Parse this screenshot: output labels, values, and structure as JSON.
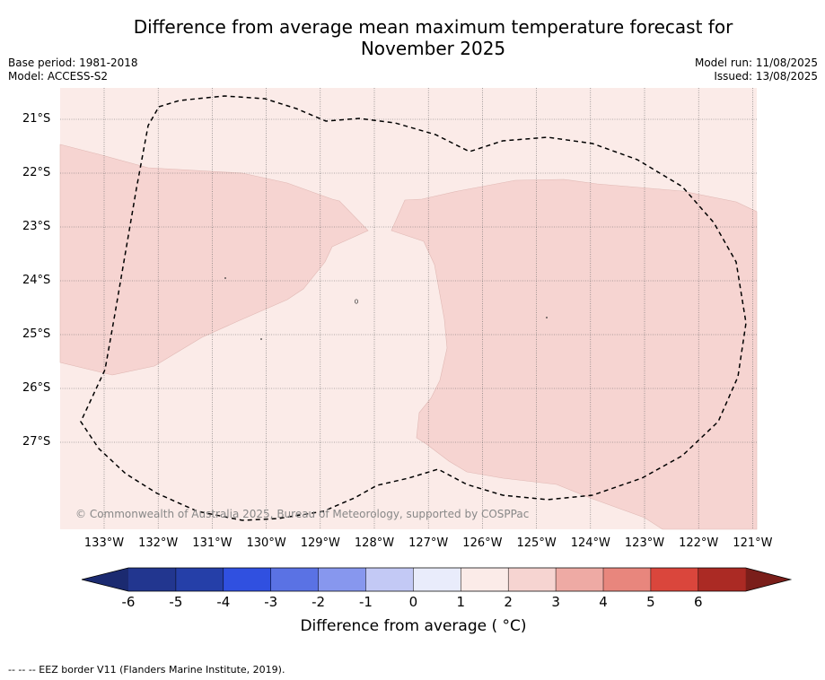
{
  "title_line1": "Difference from average mean maximum temperature forecast for",
  "title_line2": "November 2025",
  "base_period": "Base period: 1981-2018",
  "model": "Model: ACCESS-S2",
  "model_run": "Model run: 11/08/2025",
  "issued": "Issued: 13/08/2025",
  "lat_labels": [
    "21°S",
    "22°S",
    "23°S",
    "24°S",
    "25°S",
    "26°S",
    "27°S"
  ],
  "lon_labels": [
    "133°W",
    "132°W",
    "131°W",
    "130°W",
    "129°W",
    "128°W",
    "127°W",
    "126°W",
    "125°W",
    "124°W",
    "123°W",
    "122°W",
    "121°W"
  ],
  "copyright": "© Commonwealth of Australia 2025, Bureau of Meteorology, supported by COSPPac",
  "colorbar": {
    "ticks": [
      "-6",
      "-5",
      "-4",
      "-3",
      "-2",
      "-1",
      "0",
      "1",
      "2",
      "3",
      "4",
      "5",
      "6"
    ],
    "colors": [
      "#22368f",
      "#253fa8",
      "#3050e0",
      "#5a72e4",
      "#8797ee",
      "#c3c9f5",
      "#e9ecfb",
      "#fbebe8",
      "#f6d4d1",
      "#eeaaa4",
      "#e8867d",
      "#da463c",
      "#ab2a24"
    ],
    "low_extend_color": "#1b2a70",
    "high_extend_color": "#7a1e1a",
    "label": "Difference from average ( °C)"
  },
  "map_colors": {
    "class_0_1": "#fbebe8",
    "class_1_2": "#f6d4d1"
  },
  "footnote": "-- -- -- EEZ border V11 (Flanders Marine Institute, 2019)."
}
